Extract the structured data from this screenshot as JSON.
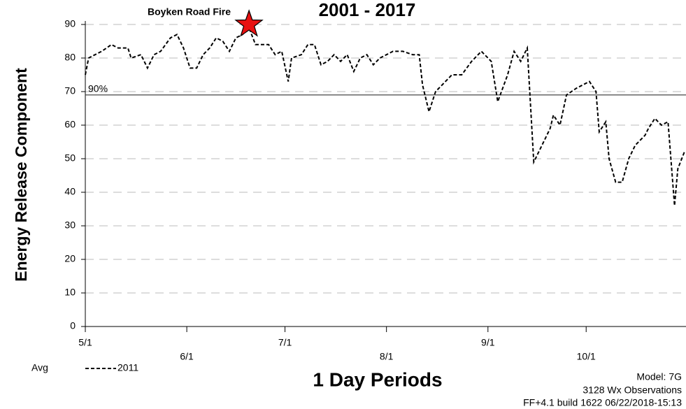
{
  "chart_data": {
    "type": "line",
    "title": "2001 - 2017",
    "y_label": "Energy Release Component",
    "x_label": "1 Day Periods",
    "annotation": {
      "text": "Boyken Road Fire",
      "x": 50,
      "y": 90,
      "color": "#e81010"
    },
    "reference_line": {
      "label": "90%",
      "value": 69
    },
    "legend_label": "Avg",
    "notes": [
      "Model: 7G",
      "3128 Wx Observations",
      "FF+4.1 build 1622 06/22/2018-15:13"
    ],
    "xlim": [
      0,
      183.5
    ],
    "xticks": [
      {
        "value": 0,
        "label": "5/1"
      },
      {
        "value": 31,
        "label": "6/1"
      },
      {
        "value": 61,
        "label": "7/1"
      },
      {
        "value": 92,
        "label": "8/1"
      },
      {
        "value": 123,
        "label": "9/1"
      },
      {
        "value": 153,
        "label": "10/1"
      }
    ],
    "ylim": [
      0,
      90
    ],
    "yticks": [
      0,
      10,
      20,
      30,
      40,
      50,
      60,
      70,
      80,
      90
    ],
    "grid": true,
    "x": [
      0,
      1,
      3,
      5,
      8,
      10,
      13,
      14,
      17,
      19,
      21,
      23,
      26,
      28,
      30,
      32,
      34,
      36,
      38,
      40,
      42,
      44,
      46,
      48,
      50,
      52,
      54,
      56,
      58,
      60,
      62,
      63,
      66,
      68,
      70,
      72,
      74,
      76,
      78,
      80,
      82,
      84,
      86,
      88,
      90,
      92,
      94,
      97,
      100,
      102,
      103,
      105,
      107,
      109,
      112,
      115,
      118,
      121,
      124,
      126,
      129,
      131,
      133,
      135,
      137,
      139,
      142,
      143,
      145,
      147,
      150,
      154,
      156,
      157,
      159,
      160,
      162,
      164,
      166,
      168,
      171,
      172,
      174,
      176,
      178,
      180,
      181,
      183
    ],
    "series": [
      {
        "name": "2011",
        "color": "#000000",
        "values": [
          75,
          80,
          81,
          82,
          84,
          83,
          83,
          80,
          81,
          77,
          81,
          82,
          86,
          87,
          83,
          77,
          77,
          81,
          83,
          86,
          85,
          82,
          86,
          87,
          89,
          84,
          84,
          84,
          81,
          82,
          73,
          80,
          81,
          84,
          84,
          78,
          79,
          81,
          79,
          81,
          76,
          80,
          81,
          78,
          80,
          81,
          82,
          82,
          81,
          81,
          72,
          64,
          70,
          72,
          75,
          75,
          79,
          82,
          79,
          67,
          75,
          82,
          79,
          83,
          49,
          53,
          59,
          63,
          60,
          69,
          71,
          73,
          70,
          58,
          61,
          50,
          43,
          43,
          50,
          54,
          57,
          59,
          62,
          60,
          61,
          36,
          47,
          52
        ]
      }
    ]
  }
}
